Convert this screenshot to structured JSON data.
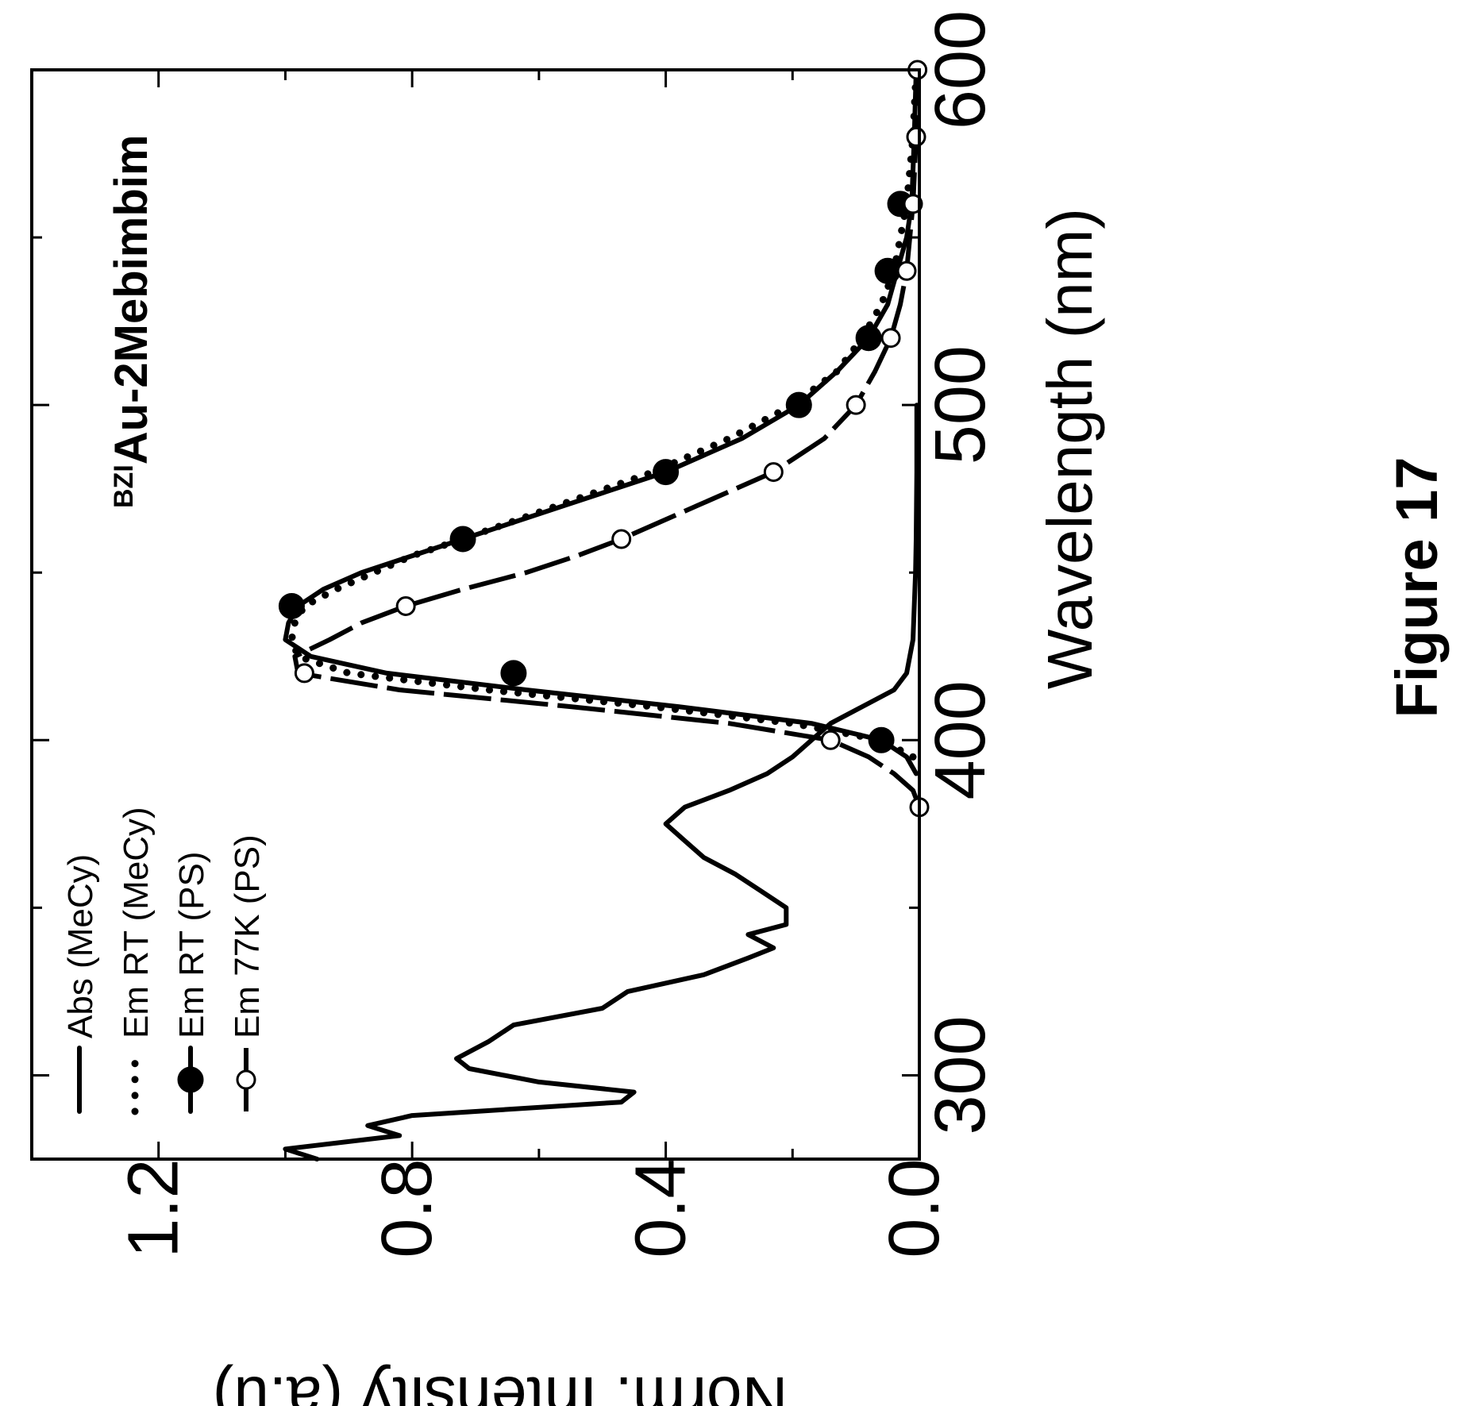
{
  "figure_label": "Figure 17",
  "compound": {
    "prefix": "BZI",
    "name": "Au-2Mebimbim"
  },
  "chart_data": {
    "type": "line",
    "orientation": "rotated 90° counter-clockwise (x axis runs bottom-to-top, y axis left-to-right)",
    "xlabel": "Wavelength (nm)",
    "ylabel": "Norm. Intensity (a.u)",
    "xlim": [
      275,
      600
    ],
    "ylim": [
      0.0,
      1.4
    ],
    "x_ticks": [
      300,
      400,
      500,
      600
    ],
    "x_tick_labels": [
      "300",
      "400",
      "500",
      "600"
    ],
    "y_ticks": [
      0.0,
      0.4,
      0.8,
      1.2
    ],
    "y_tick_labels": [
      "0.0",
      "0.4",
      "0.8",
      "1.2"
    ],
    "grid": false,
    "legend_position": "top-left (in the rotated view: lower-left region of the plot)",
    "series": [
      {
        "name": "Abs (MeCy)",
        "style": "solid",
        "marker": "none",
        "x": [
          275,
          278,
          282,
          285,
          288,
          292,
          295,
          298,
          302,
          305,
          310,
          315,
          320,
          325,
          330,
          335,
          338,
          342,
          345,
          350,
          355,
          360,
          365,
          370,
          375,
          380,
          385,
          390,
          395,
          400,
          405,
          410,
          415,
          420,
          425,
          430,
          440,
          450,
          460,
          480,
          500
        ],
        "y": [
          0.95,
          1.0,
          0.82,
          0.87,
          0.8,
          0.47,
          0.45,
          0.6,
          0.71,
          0.73,
          0.68,
          0.64,
          0.5,
          0.46,
          0.34,
          0.27,
          0.23,
          0.27,
          0.21,
          0.21,
          0.25,
          0.29,
          0.34,
          0.37,
          0.4,
          0.37,
          0.3,
          0.24,
          0.2,
          0.17,
          0.14,
          0.09,
          0.04,
          0.02,
          0.015,
          0.01,
          0.008,
          0.006,
          0.005,
          0.004,
          0.004
        ]
      },
      {
        "name": "Em RT (MeCy)",
        "style": "dotted",
        "marker": "dots",
        "x": [
          395,
          400,
          405,
          410,
          415,
          420,
          425,
          430,
          435,
          440,
          445,
          450,
          455,
          460,
          470,
          480,
          490,
          500,
          510,
          520,
          530,
          540,
          550,
          560,
          580,
          600
        ],
        "y": [
          0.01,
          0.06,
          0.2,
          0.42,
          0.68,
          0.9,
          0.98,
          0.99,
          0.985,
          0.97,
          0.92,
          0.86,
          0.8,
          0.72,
          0.57,
          0.42,
          0.3,
          0.2,
          0.13,
          0.09,
          0.06,
          0.04,
          0.03,
          0.02,
          0.01,
          0.005
        ]
      },
      {
        "name": "Em RT (PS)",
        "style": "solid",
        "marker": "filled-circle",
        "x": [
          390,
          395,
          400,
          405,
          410,
          415,
          420,
          425,
          430,
          435,
          440,
          445,
          450,
          455,
          460,
          470,
          480,
          490,
          500,
          510,
          520,
          530,
          540,
          550,
          560,
          580,
          600
        ],
        "y": [
          0.005,
          0.02,
          0.06,
          0.17,
          0.38,
          0.62,
          0.84,
          0.96,
          1.0,
          0.995,
          0.98,
          0.94,
          0.88,
          0.8,
          0.72,
          0.56,
          0.4,
          0.28,
          0.19,
          0.13,
          0.08,
          0.05,
          0.035,
          0.02,
          0.012,
          0.008,
          0.005
        ],
        "markers_x": [
          400,
          420,
          440,
          460,
          480,
          500,
          520,
          540,
          560
        ],
        "markers_y": [
          0.06,
          0.64,
          0.99,
          0.72,
          0.4,
          0.19,
          0.08,
          0.05,
          0.03
        ]
      },
      {
        "name": "Em 77K (PS)",
        "style": "long-dash",
        "marker": "open-circle",
        "x": [
          380,
          385,
          390,
          395,
          400,
          405,
          410,
          415,
          420,
          425,
          430,
          435,
          440,
          445,
          450,
          455,
          460,
          470,
          480,
          490,
          500,
          510,
          520,
          530,
          540,
          560,
          580,
          600
        ],
        "y": [
          0.0,
          0.01,
          0.04,
          0.08,
          0.14,
          0.3,
          0.55,
          0.82,
          0.98,
          0.985,
          0.93,
          0.88,
          0.81,
          0.72,
          0.62,
          0.54,
          0.47,
          0.35,
          0.23,
          0.15,
          0.1,
          0.07,
          0.045,
          0.03,
          0.02,
          0.01,
          0.005,
          0.003
        ],
        "markers_x": [
          380,
          400,
          420,
          440,
          460,
          480,
          500,
          520,
          540,
          560,
          580,
          600
        ],
        "markers_y": [
          0.0,
          0.14,
          0.97,
          0.81,
          0.47,
          0.23,
          0.1,
          0.045,
          0.02,
          0.01,
          0.005,
          0.003
        ]
      }
    ]
  }
}
